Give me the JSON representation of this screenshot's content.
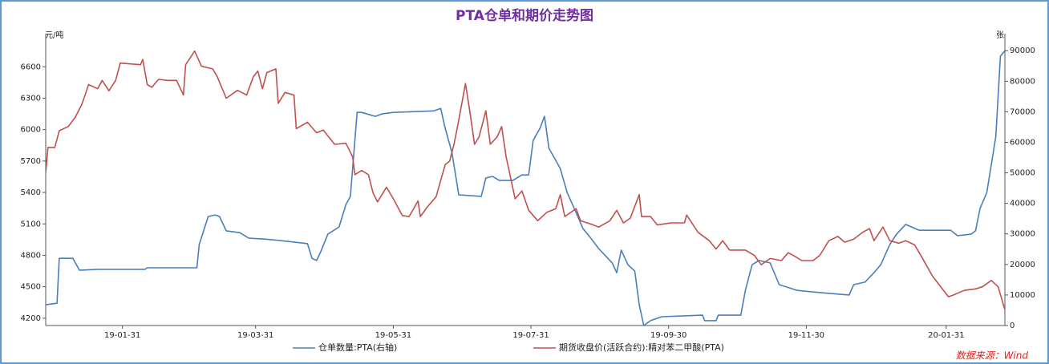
{
  "chart_data": {
    "type": "line",
    "title": "PTA仓单和期价走势图",
    "y_label": "元/吨",
    "y2_label": "张",
    "source": "数据来源：Wind",
    "xlim": [
      "18-12-28",
      "20-02-26"
    ],
    "xticks": [
      "19-01-31",
      "19-03-31",
      "19-05-31",
      "19-07-31",
      "19-09-30",
      "19-11-30",
      "20-01-31"
    ],
    "ylim": [
      4130,
      6870
    ],
    "yticks": [
      4200,
      4500,
      4800,
      5100,
      5400,
      5700,
      6000,
      6300,
      6600
    ],
    "y2lim": [
      0,
      94000
    ],
    "y2ticks": [
      0,
      10000,
      20000,
      30000,
      40000,
      50000,
      60000,
      70000,
      80000,
      90000
    ],
    "grid": false,
    "legend": "bottom",
    "series": [
      {
        "name": "仓单数量:PTA(右轴)",
        "color": "#4a7ebb",
        "axis": "y2",
        "x": [
          "18-12-28",
          "19-01-02",
          "19-01-03",
          "19-01-09",
          "19-01-12",
          "19-01-20",
          "19-02-10",
          "19-02-11",
          "19-03-05",
          "19-03-06",
          "19-03-10",
          "19-03-13",
          "19-03-15",
          "19-03-18",
          "19-03-24",
          "19-03-28",
          "19-04-04",
          "19-04-11",
          "19-04-23",
          "19-04-25",
          "19-04-27",
          "19-04-29",
          "19-05-02",
          "19-05-07",
          "19-05-10",
          "19-05-12",
          "19-05-15",
          "19-05-17",
          "19-05-23",
          "19-05-26",
          "19-05-31",
          "19-06-18",
          "19-06-21",
          "19-06-23",
          "19-06-26",
          "19-06-29",
          "19-07-09",
          "19-07-11",
          "19-07-14",
          "19-07-17",
          "19-07-23",
          "19-07-27",
          "19-07-30",
          "19-08-01",
          "19-08-04",
          "19-08-06",
          "19-08-08",
          "19-08-11",
          "19-08-13",
          "19-08-16",
          "19-08-20",
          "19-08-23",
          "19-08-26",
          "19-08-30",
          "19-09-05",
          "19-09-07",
          "19-09-09",
          "19-09-12",
          "19-09-15",
          "19-09-17",
          "19-09-19",
          "19-09-22",
          "19-09-27",
          "19-10-15",
          "19-10-16",
          "19-10-21",
          "19-10-22",
          "19-11-01",
          "19-11-03",
          "19-11-06",
          "19-11-09",
          "19-11-14",
          "19-11-18",
          "19-11-26",
          "19-12-06",
          "19-12-19",
          "19-12-21",
          "19-12-26",
          "19-12-30",
          "20-01-02",
          "20-01-06",
          "20-01-09",
          "20-01-13",
          "20-01-19",
          "20-02-02",
          "20-02-05",
          "20-02-11",
          "20-02-13",
          "20-02-15",
          "20-02-18",
          "20-02-22",
          "20-02-24",
          "20-02-26"
        ],
        "values": [
          6800,
          7300,
          22000,
          22000,
          18100,
          18400,
          18400,
          18900,
          18900,
          26500,
          35700,
          36200,
          35700,
          31000,
          30400,
          28600,
          28300,
          27800,
          26800,
          22000,
          21300,
          24400,
          29900,
          32300,
          39600,
          42300,
          69800,
          69800,
          68500,
          69300,
          69800,
          70300,
          71100,
          64600,
          56700,
          42800,
          42300,
          48300,
          48800,
          47500,
          47500,
          49300,
          49300,
          60600,
          64600,
          68500,
          58000,
          54100,
          51400,
          43600,
          37000,
          31800,
          29100,
          25200,
          20500,
          17300,
          24700,
          19900,
          17800,
          6800,
          0,
          1600,
          2900,
          3400,
          1600,
          1600,
          3400,
          3400,
          11500,
          19900,
          21300,
          20500,
          13400,
          11500,
          10800,
          10000,
          13400,
          14200,
          17300,
          19900,
          26500,
          29900,
          33100,
          31200,
          31200,
          29400,
          29900,
          31000,
          38300,
          43600,
          61900,
          88200,
          90000
        ]
      },
      {
        "name": "期货收盘价(活跃合约):精对苯二甲酸(PTA)",
        "color": "#c0504d",
        "axis": "y",
        "x": [
          "18-12-28",
          "18-12-29",
          "19-01-01",
          "19-01-03",
          "19-01-07",
          "19-01-10",
          "19-01-13",
          "19-01-16",
          "19-01-20",
          "19-01-22",
          "19-01-25",
          "19-01-28",
          "19-01-30",
          "19-02-08",
          "19-02-09",
          "19-02-11",
          "19-02-13",
          "19-02-16",
          "19-02-20",
          "19-02-24",
          "19-02-27",
          "19-02-28",
          "19-03-04",
          "19-03-07",
          "19-03-12",
          "19-03-14",
          "19-03-18",
          "19-03-23",
          "19-03-27",
          "19-03-30",
          "19-04-01",
          "19-04-03",
          "19-04-05",
          "19-04-09",
          "19-04-10",
          "19-04-13",
          "19-04-17",
          "19-04-18",
          "19-04-23",
          "19-04-27",
          "19-04-30",
          "19-05-05",
          "19-05-10",
          "19-05-13",
          "19-05-14",
          "19-05-17",
          "19-05-20",
          "19-05-22",
          "19-05-24",
          "19-05-28",
          "19-05-31",
          "19-06-04",
          "19-06-07",
          "19-06-11",
          "19-06-12",
          "19-06-15",
          "19-06-19",
          "19-06-22",
          "19-06-23",
          "19-06-25",
          "19-06-27",
          "19-06-29",
          "19-07-02",
          "19-07-04",
          "19-07-06",
          "19-07-08",
          "19-07-11",
          "19-07-13",
          "19-07-16",
          "19-07-18",
          "19-07-20",
          "19-07-24",
          "19-07-27",
          "19-07-30",
          "19-08-03",
          "19-08-07",
          "19-08-11",
          "19-08-13",
          "19-08-15",
          "19-08-20",
          "19-08-22",
          "19-08-27",
          "19-08-30",
          "19-09-04",
          "19-09-07",
          "19-09-10",
          "19-09-13",
          "19-09-17",
          "19-09-18",
          "19-09-22",
          "19-09-25",
          "19-10-01",
          "19-10-07",
          "19-10-08",
          "19-10-13",
          "19-10-18",
          "19-10-21",
          "19-10-24",
          "19-10-27",
          "19-11-03",
          "19-11-07",
          "19-11-10",
          "19-11-14",
          "19-11-19",
          "19-11-22",
          "19-11-25",
          "19-11-28",
          "19-12-03",
          "19-12-06",
          "19-12-10",
          "19-12-14",
          "19-12-17",
          "19-12-21",
          "19-12-25",
          "19-12-28",
          "19-12-30",
          "20-01-03",
          "20-01-06",
          "20-01-10",
          "20-01-13",
          "20-01-17",
          "20-01-20",
          "20-01-25",
          "20-02-01",
          "20-02-03",
          "20-02-08",
          "20-02-13",
          "20-02-16",
          "20-02-20",
          "20-02-23",
          "20-02-26"
        ],
        "values": [
          5590,
          5830,
          5830,
          5990,
          6030,
          6115,
          6240,
          6430,
          6390,
          6470,
          6370,
          6470,
          6635,
          6620,
          6670,
          6430,
          6405,
          6480,
          6470,
          6470,
          6330,
          6620,
          6750,
          6605,
          6580,
          6505,
          6300,
          6375,
          6330,
          6505,
          6560,
          6390,
          6545,
          6580,
          6250,
          6355,
          6330,
          6010,
          6070,
          5970,
          5995,
          5860,
          5870,
          5740,
          5570,
          5610,
          5570,
          5400,
          5310,
          5450,
          5340,
          5180,
          5170,
          5320,
          5170,
          5260,
          5360,
          5590,
          5665,
          5700,
          5870,
          6090,
          6440,
          6160,
          5860,
          5930,
          6180,
          5860,
          5930,
          6030,
          5740,
          5340,
          5415,
          5230,
          5130,
          5210,
          5245,
          5380,
          5170,
          5245,
          5130,
          5095,
          5070,
          5130,
          5230,
          5110,
          5155,
          5380,
          5170,
          5170,
          5090,
          5110,
          5110,
          5185,
          5020,
          4940,
          4860,
          4940,
          4850,
          4850,
          4800,
          4710,
          4770,
          4750,
          4825,
          4790,
          4750,
          4750,
          4800,
          4940,
          4980,
          4925,
          4955,
          5020,
          5055,
          4940,
          5070,
          4940,
          4915,
          4940,
          4900,
          4790,
          4600,
          4405,
          4420,
          4465,
          4480,
          4500,
          4560,
          4500,
          4280
        ]
      }
    ]
  }
}
